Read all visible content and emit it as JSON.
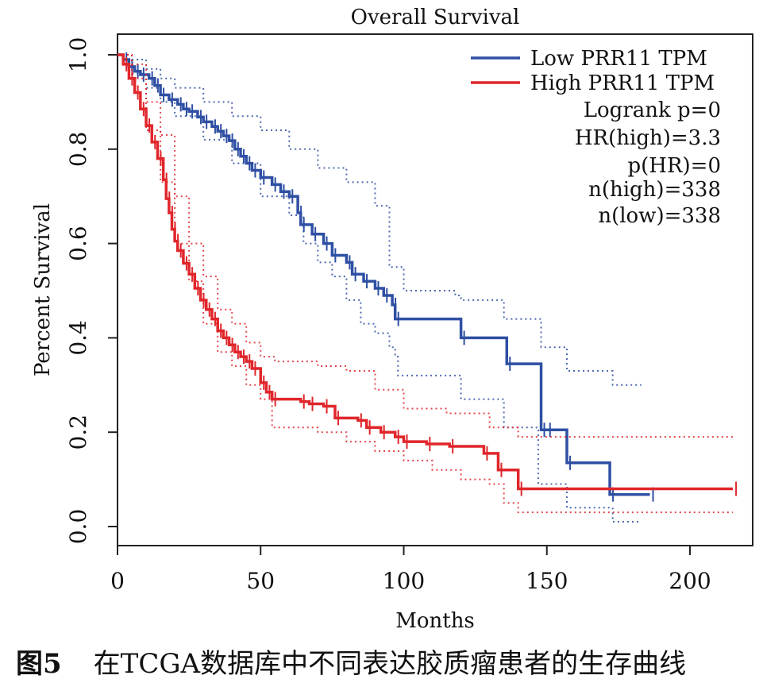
{
  "chart_data": {
    "type": "line",
    "title": "Overall Survival",
    "xlabel": "Months",
    "ylabel": "Percent Survival",
    "xlim": [
      0,
      215
    ],
    "ylim": [
      0,
      1
    ],
    "xticks": [
      0,
      50,
      100,
      150,
      200
    ],
    "yticks": [
      0.0,
      0.2,
      0.4,
      0.6,
      0.8,
      1.0
    ],
    "xtick_labels": [
      "0",
      "50",
      "100",
      "150",
      "200"
    ],
    "ytick_labels": [
      "0.0",
      "0.2",
      "0.4",
      "0.6",
      "0.8",
      "1.0"
    ],
    "legend_position": "top-right",
    "series": [
      {
        "name": "Low PRR11 TPM",
        "color": "#2e4fa3",
        "step": [
          [
            0,
            1.0
          ],
          [
            2,
            0.99
          ],
          [
            4,
            0.975
          ],
          [
            6,
            0.965
          ],
          [
            8,
            0.958
          ],
          [
            11,
            0.95
          ],
          [
            13,
            0.935
          ],
          [
            15,
            0.915
          ],
          [
            18,
            0.905
          ],
          [
            21,
            0.895
          ],
          [
            23,
            0.885
          ],
          [
            25,
            0.88
          ],
          [
            28,
            0.868
          ],
          [
            30,
            0.858
          ],
          [
            33,
            0.848
          ],
          [
            35,
            0.838
          ],
          [
            37,
            0.828
          ],
          [
            39,
            0.818
          ],
          [
            41,
            0.8
          ],
          [
            43,
            0.785
          ],
          [
            45,
            0.77
          ],
          [
            47,
            0.755
          ],
          [
            50,
            0.74
          ],
          [
            54,
            0.725
          ],
          [
            57,
            0.71
          ],
          [
            60,
            0.7
          ],
          [
            63,
            0.665
          ],
          [
            64,
            0.64
          ],
          [
            68,
            0.62
          ],
          [
            72,
            0.6
          ],
          [
            75,
            0.575
          ],
          [
            80,
            0.56
          ],
          [
            82,
            0.535
          ],
          [
            86,
            0.52
          ],
          [
            90,
            0.505
          ],
          [
            93,
            0.49
          ],
          [
            96,
            0.47
          ],
          [
            97,
            0.44
          ],
          [
            120,
            0.4
          ],
          [
            136,
            0.345
          ],
          [
            148,
            0.205
          ],
          [
            150,
            0.205
          ],
          [
            157,
            0.135
          ],
          [
            172,
            0.068
          ],
          [
            186,
            0.068
          ]
        ],
        "ci_upper": [
          [
            0,
            1.0
          ],
          [
            5,
            0.99
          ],
          [
            10,
            0.97
          ],
          [
            15,
            0.95
          ],
          [
            20,
            0.93
          ],
          [
            30,
            0.9
          ],
          [
            40,
            0.87
          ],
          [
            50,
            0.84
          ],
          [
            60,
            0.8
          ],
          [
            70,
            0.76
          ],
          [
            80,
            0.73
          ],
          [
            90,
            0.68
          ],
          [
            95,
            0.55
          ],
          [
            100,
            0.5
          ],
          [
            118,
            0.49
          ],
          [
            120,
            0.48
          ],
          [
            133,
            0.48
          ],
          [
            135,
            0.44
          ],
          [
            145,
            0.44
          ],
          [
            148,
            0.38
          ],
          [
            155,
            0.38
          ],
          [
            157,
            0.33
          ],
          [
            172,
            0.33
          ],
          [
            173,
            0.3
          ],
          [
            183,
            0.3
          ]
        ],
        "ci_lower": [
          [
            0,
            1.0
          ],
          [
            5,
            0.96
          ],
          [
            10,
            0.93
          ],
          [
            15,
            0.9
          ],
          [
            20,
            0.87
          ],
          [
            30,
            0.82
          ],
          [
            40,
            0.77
          ],
          [
            50,
            0.7
          ],
          [
            60,
            0.66
          ],
          [
            65,
            0.6
          ],
          [
            70,
            0.56
          ],
          [
            75,
            0.53
          ],
          [
            80,
            0.48
          ],
          [
            85,
            0.43
          ],
          [
            90,
            0.41
          ],
          [
            95,
            0.38
          ],
          [
            97,
            0.36
          ],
          [
            98,
            0.32
          ],
          [
            118,
            0.32
          ],
          [
            120,
            0.27
          ],
          [
            133,
            0.27
          ],
          [
            135,
            0.21
          ],
          [
            145,
            0.21
          ],
          [
            147,
            0.09
          ],
          [
            157,
            0.04
          ],
          [
            172,
            0.04
          ],
          [
            173,
            0.01
          ],
          [
            183,
            0.01
          ]
        ]
      },
      {
        "name": "High PRR11 TPM",
        "color": "#e0262b",
        "step": [
          [
            0,
            1.0
          ],
          [
            2,
            0.98
          ],
          [
            4,
            0.95
          ],
          [
            6,
            0.92
          ],
          [
            8,
            0.885
          ],
          [
            10,
            0.85
          ],
          [
            12,
            0.815
          ],
          [
            14,
            0.78
          ],
          [
            16,
            0.735
          ],
          [
            17,
            0.695
          ],
          [
            18,
            0.665
          ],
          [
            19,
            0.63
          ],
          [
            20,
            0.605
          ],
          [
            21,
            0.585
          ],
          [
            23,
            0.558
          ],
          [
            25,
            0.535
          ],
          [
            27,
            0.505
          ],
          [
            29,
            0.48
          ],
          [
            31,
            0.46
          ],
          [
            33,
            0.44
          ],
          [
            35,
            0.415
          ],
          [
            37,
            0.4
          ],
          [
            39,
            0.385
          ],
          [
            41,
            0.37
          ],
          [
            43,
            0.36
          ],
          [
            45,
            0.35
          ],
          [
            47,
            0.335
          ],
          [
            50,
            0.305
          ],
          [
            52,
            0.285
          ],
          [
            54,
            0.27
          ],
          [
            64,
            0.265
          ],
          [
            67,
            0.26
          ],
          [
            72,
            0.255
          ],
          [
            76,
            0.23
          ],
          [
            84,
            0.225
          ],
          [
            87,
            0.21
          ],
          [
            92,
            0.2
          ],
          [
            97,
            0.19
          ],
          [
            100,
            0.18
          ],
          [
            108,
            0.175
          ],
          [
            116,
            0.17
          ],
          [
            128,
            0.155
          ],
          [
            133,
            0.12
          ],
          [
            140,
            0.08
          ],
          [
            215,
            0.08
          ]
        ],
        "ci_upper": [
          [
            0,
            1.0
          ],
          [
            5,
            0.98
          ],
          [
            10,
            0.9
          ],
          [
            15,
            0.83
          ],
          [
            20,
            0.7
          ],
          [
            25,
            0.6
          ],
          [
            30,
            0.53
          ],
          [
            35,
            0.46
          ],
          [
            40,
            0.43
          ],
          [
            45,
            0.39
          ],
          [
            50,
            0.36
          ],
          [
            55,
            0.35
          ],
          [
            70,
            0.34
          ],
          [
            80,
            0.33
          ],
          [
            90,
            0.29
          ],
          [
            100,
            0.25
          ],
          [
            115,
            0.24
          ],
          [
            125,
            0.24
          ],
          [
            130,
            0.21
          ],
          [
            135,
            0.21
          ],
          [
            140,
            0.19
          ],
          [
            215,
            0.19
          ]
        ],
        "ci_lower": [
          [
            0,
            1.0
          ],
          [
            5,
            0.95
          ],
          [
            10,
            0.84
          ],
          [
            15,
            0.73
          ],
          [
            20,
            0.6
          ],
          [
            25,
            0.52
          ],
          [
            30,
            0.43
          ],
          [
            35,
            0.37
          ],
          [
            40,
            0.34
          ],
          [
            45,
            0.3
          ],
          [
            50,
            0.27
          ],
          [
            54,
            0.21
          ],
          [
            70,
            0.2
          ],
          [
            80,
            0.18
          ],
          [
            90,
            0.16
          ],
          [
            100,
            0.14
          ],
          [
            110,
            0.12
          ],
          [
            120,
            0.1
          ],
          [
            130,
            0.09
          ],
          [
            135,
            0.05
          ],
          [
            140,
            0.03
          ],
          [
            215,
            0.03
          ]
        ]
      }
    ],
    "annotations": [
      "Logrank p=0",
      "HR(high)=3.3",
      "p(HR)=0",
      "n(high)=338",
      "n(low)=338"
    ]
  },
  "caption": {
    "figure_number": "图5",
    "text": "在TCGA数据库中不同表达胶质瘤患者的生存曲线"
  }
}
